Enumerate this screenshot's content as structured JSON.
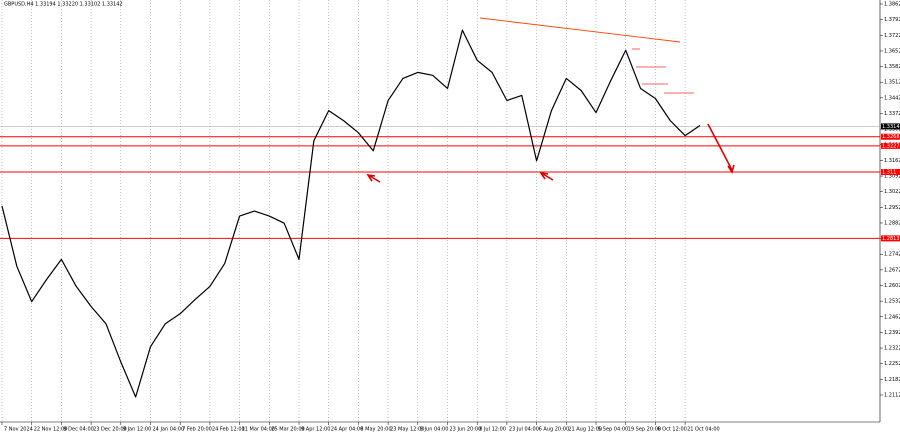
{
  "chart_data": {
    "type": "line",
    "title": "GBPUSD,H4 1.33194 1.33220 1.33102 1.33142",
    "categories": [
      "7 Nov 2024",
      null,
      "22 Nov 12:00",
      null,
      "9 Dec 04:00",
      null,
      "23 Dec 20:00",
      null,
      "9 Jan 12:00",
      null,
      "24 Jan 04:00",
      null,
      "7 Feb 20:00",
      null,
      "24 Feb 12:00",
      null,
      "11 Mar 04:00",
      null,
      "25 Mar 20:00",
      null,
      "9 Apr 12:00",
      null,
      "24 Apr 04:00",
      null,
      "8 May 20:00",
      null,
      "23 May 12:00",
      null,
      "9 Jun 04:00",
      null,
      "23 Jun 20:00",
      null,
      "8 Jul 12:00",
      null,
      "23 Jul 04:00",
      null,
      "6 Aug 20:00",
      null,
      "21 Aug 12:00",
      null,
      "5 Sep 04:00",
      null,
      "19 Sep 20:00",
      null,
      "6 Oct 12:00",
      null,
      "21 Oct 04:00",
      null
    ],
    "series": [
      {
        "name": "GBPUSD",
        "color": "#000000",
        "values": [
          1.2958,
          1.2688,
          1.253,
          1.2629,
          1.2719,
          1.2598,
          1.2508,
          1.2431,
          1.226,
          1.2103,
          1.2328,
          1.2431,
          1.2476,
          1.2539,
          1.2598,
          1.2701,
          1.2913,
          1.2935,
          1.2913,
          1.2881,
          1.2719,
          1.325,
          1.3385,
          1.334,
          1.3286,
          1.3205,
          1.343,
          1.3529,
          1.3556,
          1.3543,
          1.3484,
          1.3745,
          1.361,
          1.3556,
          1.343,
          1.3453,
          1.316,
          1.3385,
          1.3529,
          1.3475,
          1.3376,
          1.352,
          1.3655,
          1.3484,
          1.3439,
          1.334,
          1.3273,
          1.3318
        ]
      }
    ],
    "ylim": [
      1.2,
      1.388
    ],
    "yticks": [
      1.2112,
      1.2182,
      1.2252,
      1.2322,
      1.2392,
      1.2462,
      1.2532,
      1.2602,
      1.2672,
      1.2742,
      1.2812,
      1.2882,
      1.2952,
      1.3022,
      1.3092,
      1.3162,
      1.3232,
      1.3302,
      1.3372,
      1.3442,
      1.3512,
      1.3582,
      1.3652,
      1.3722,
      1.3792,
      1.3862
    ],
    "levels": [
      1.3268,
      1.3227,
      1.311,
      1.2813
    ],
    "level_color": "#ff0000",
    "current_price": 1.33142,
    "grid": true
  }
}
